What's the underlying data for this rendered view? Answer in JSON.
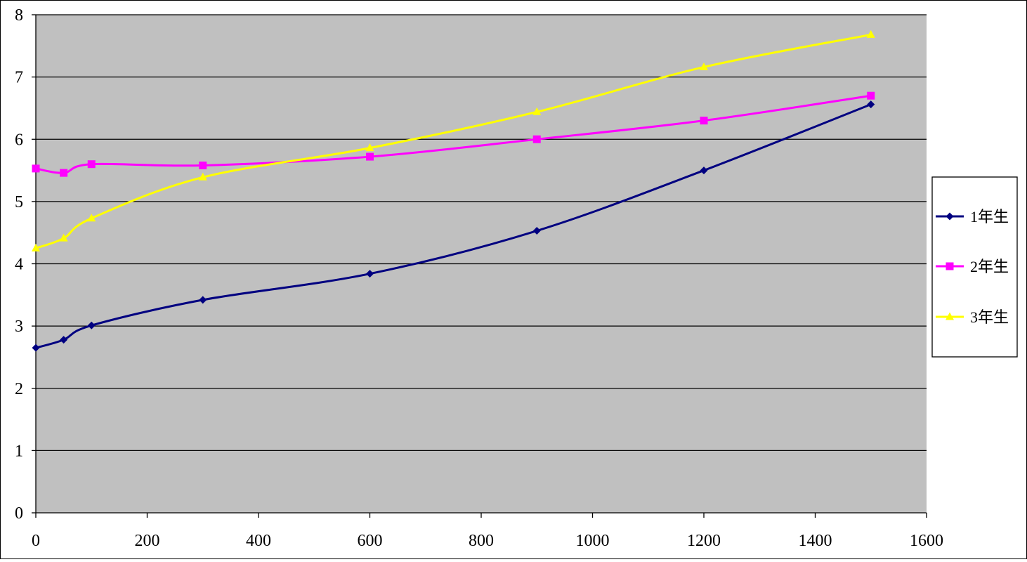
{
  "chart_data": {
    "type": "line",
    "title": "",
    "xlabel": "",
    "ylabel": "",
    "xlim": [
      0,
      1600
    ],
    "ylim": [
      0,
      8
    ],
    "x_ticks": [
      0,
      200,
      400,
      600,
      800,
      1000,
      1200,
      1400,
      1600
    ],
    "y_ticks": [
      0,
      1,
      2,
      3,
      4,
      5,
      6,
      7,
      8
    ],
    "x_tick_labels": [
      "0",
      "200",
      "400",
      "600",
      "800",
      "1000",
      "1200",
      "1400",
      "1600"
    ],
    "y_tick_labels": [
      "0",
      "1",
      "2",
      "3",
      "4",
      "5",
      "6",
      "7",
      "8"
    ],
    "grid": "horizontal major gridlines",
    "plot_background": "#C0C0C0",
    "legend_position": "right",
    "x": [
      0,
      50,
      100,
      300,
      600,
      900,
      1200,
      1500
    ],
    "series": [
      {
        "name": "1年生",
        "color": "#000080",
        "marker": "diamond",
        "values": [
          2.65,
          2.78,
          3.01,
          3.42,
          3.84,
          4.53,
          5.5,
          6.56
        ]
      },
      {
        "name": "2年生",
        "color": "#FF00FF",
        "marker": "square",
        "values": [
          5.53,
          5.46,
          5.6,
          5.58,
          5.72,
          6.0,
          6.3,
          6.7
        ]
      },
      {
        "name": "3年生",
        "color": "#FFFF00",
        "marker": "triangle",
        "values": [
          4.25,
          4.41,
          4.73,
          5.39,
          5.86,
          6.44,
          7.16,
          7.68
        ]
      }
    ]
  }
}
